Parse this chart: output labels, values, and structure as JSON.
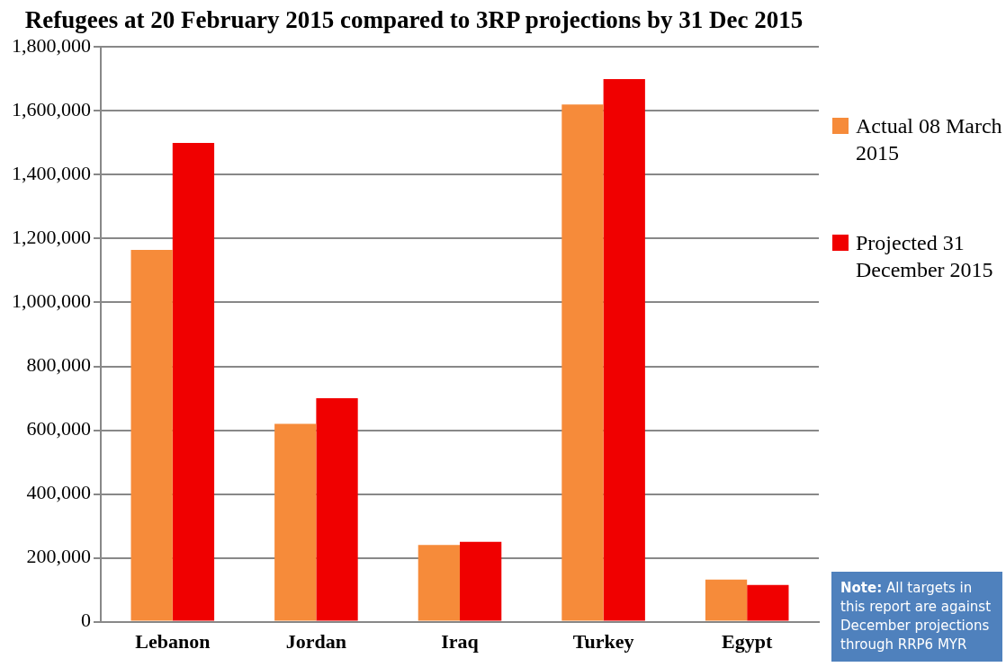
{
  "chart_data": {
    "type": "bar",
    "title": "Refugees at 20 February 2015 compared to 3RP projections by 31 Dec 2015",
    "categories": [
      "Lebanon",
      "Jordan",
      "Iraq",
      "Turkey",
      "Egypt"
    ],
    "series": [
      {
        "name": "Actual 08 March 2015",
        "color": "#f68b3a",
        "values": [
          1165000,
          620000,
          240000,
          1620000,
          132000
        ]
      },
      {
        "name": "Projected 31 December 2015",
        "color": "#f00000",
        "values": [
          1500000,
          700000,
          250000,
          1700000,
          115000
        ]
      }
    ],
    "ylim": [
      0,
      1800000
    ],
    "yticks": [
      {
        "value": 0,
        "label": "0"
      },
      {
        "value": 200000,
        "label": "200,000"
      },
      {
        "value": 400000,
        "label": "400,000"
      },
      {
        "value": 600000,
        "label": "600,000"
      },
      {
        "value": 800000,
        "label": "800,000"
      },
      {
        "value": 1000000,
        "label": "1,000,000"
      },
      {
        "value": 1200000,
        "label": "1,200,000"
      },
      {
        "value": 1400000,
        "label": "1,400,000"
      },
      {
        "value": 1600000,
        "label": "1,600,000"
      },
      {
        "value": 1800000,
        "label": "1,800,000"
      }
    ],
    "grid": "y",
    "legend": "right",
    "annotations": [
      "Note: All targets in this report are against December projections through RRP6 MYR"
    ]
  }
}
